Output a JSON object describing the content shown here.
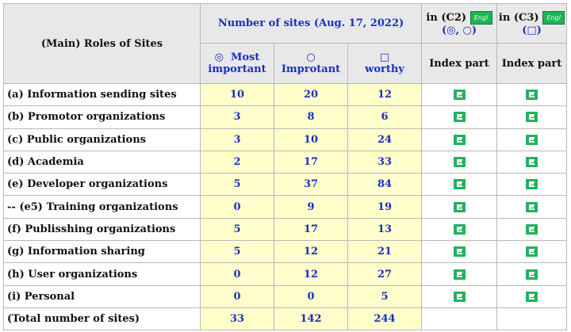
{
  "header": {
    "roles_title": "(Main) Roles of Sites",
    "sites_title": "Number of sites (Aug. 17, 2022)",
    "c2_title": "in (C2)",
    "c2_sub": "(◎, ○)",
    "c3_title": "in (C3)",
    "c3_sub": "(□)",
    "badge_label": "Engl",
    "col_most_symbol": "◎",
    "col_most_a": "Most",
    "col_most_b": "important",
    "col_imp_symbol": "○",
    "col_imp": "Improtant",
    "col_worthy_symbol": "□",
    "col_worthy": "worthy",
    "index_part_c2": "Index part",
    "index_part_c3": "Index part"
  },
  "rows": [
    {
      "role": "(a) Information sending sites",
      "most": "10",
      "important": "20",
      "worthy": "12"
    },
    {
      "role": "(b)  Promotor organizations",
      "most": "3",
      "important": "8",
      "worthy": "6"
    },
    {
      "role": "(c) Public organizations",
      "most": "3",
      "important": "10",
      "worthy": "24"
    },
    {
      "role": "(d)  Academia",
      "most": "2",
      "important": "17",
      "worthy": "33"
    },
    {
      "role": "(e) Developer organizations",
      "most": "5",
      "important": "37",
      "worthy": "84"
    },
    {
      "role": "-- (e5)  Training organizations",
      "most": "0",
      "important": "9",
      "worthy": "19"
    },
    {
      "role": "(f) Publisshing organizations",
      "most": "5",
      "important": "17",
      "worthy": "13"
    },
    {
      "role": "(g)  Information sharing",
      "most": "5",
      "important": "12",
      "worthy": "21"
    },
    {
      "role": "(h)  User organizations",
      "most": "0",
      "important": "12",
      "worthy": "27"
    },
    {
      "role": "(i)  Personal",
      "most": "0",
      "important": "0",
      "worthy": "5"
    }
  ],
  "total": {
    "role": "(Total number of sites)",
    "most": "33",
    "important": "142",
    "worthy": "244"
  },
  "colors": {
    "header_bg": "#e8e8e8",
    "count_bg": "#ffffcc",
    "count_text": "#1a2fbf",
    "icon_green": "#22b25a"
  },
  "icons": {
    "index_link": "e-doc-icon",
    "language_badge": "engl-badge-icon"
  }
}
